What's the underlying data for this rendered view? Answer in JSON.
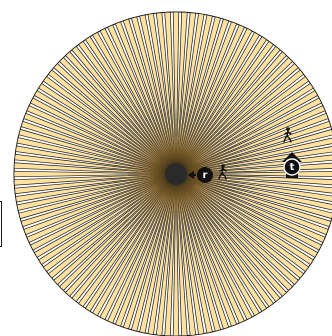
{
  "board": {
    "ray_count": 120,
    "palette": {
      "ray_fill": "#FFE1A0",
      "ray_fill_inner": "#F2C25A",
      "ray_stroke": "#1A1A1A",
      "center": "#2A2A2A",
      "background": "#FFFFFF"
    }
  },
  "player": {
    "badge_letter": "r",
    "badge_color": "#111111",
    "badge_text_color": "#FFFFFF",
    "walker_icon": "walking-person-icon",
    "pointer_icon": "left-arrow-icon"
  },
  "target": {
    "badge_letter": "t",
    "badge_color": "#111111",
    "badge_text_color": "#FFFFFF",
    "walker_icon": "walking-person-icon",
    "marker_icon": "upward-arrow-marker-icon"
  }
}
